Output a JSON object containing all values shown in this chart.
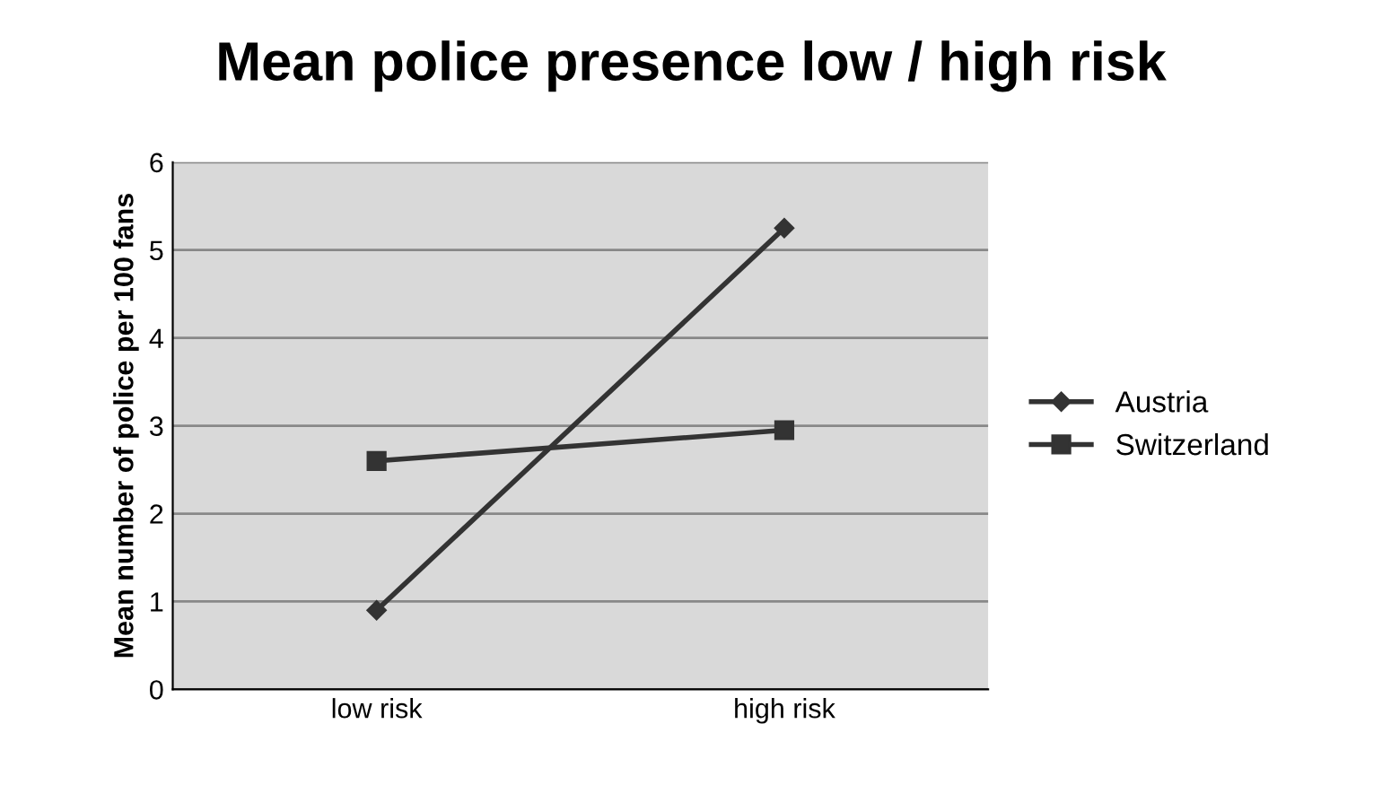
{
  "chart_data": {
    "type": "line",
    "title": "Mean police presence low / high risk",
    "ylabel": "Mean number of police per 100 fans",
    "categories": [
      "low risk",
      "high risk"
    ],
    "series": [
      {
        "name": "Austria",
        "color": "#333333",
        "marker": "diamond",
        "values": [
          0.9,
          5.25
        ]
      },
      {
        "name": "Switzerland",
        "color": "#333333",
        "marker": "square",
        "values": [
          2.6,
          2.95
        ]
      }
    ],
    "ylim": [
      0,
      6
    ],
    "yticks": [
      0,
      1,
      2,
      3,
      4,
      5,
      6
    ],
    "grid": "y",
    "legend": "right",
    "line_style": "solid"
  }
}
